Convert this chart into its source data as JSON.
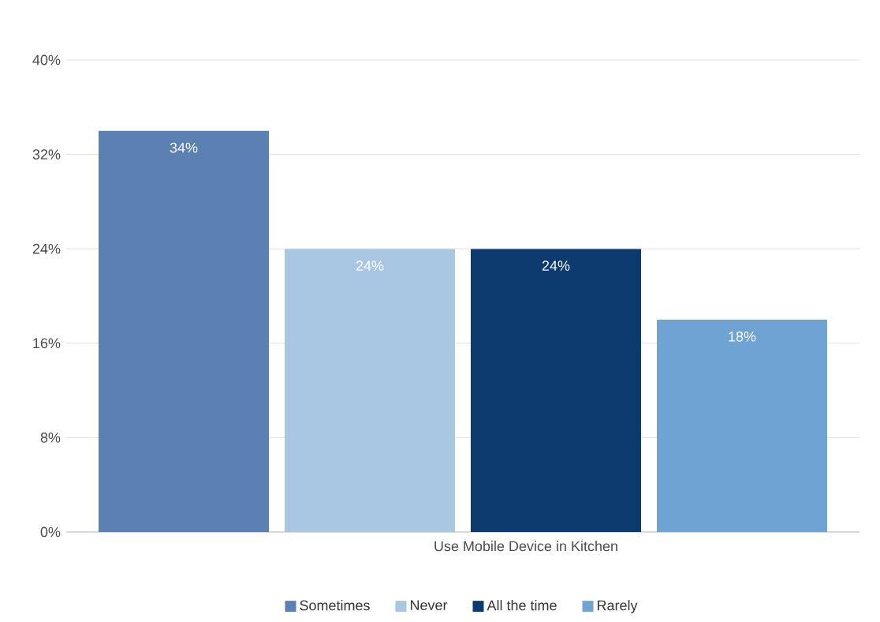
{
  "chart_data": {
    "type": "bar",
    "categories": [
      "Use Mobile Device in Kitchen"
    ],
    "series": [
      {
        "name": "Sometimes",
        "color": "#5b80b2",
        "values": [
          34
        ],
        "value_labels": [
          "34%"
        ]
      },
      {
        "name": "Never",
        "color": "#a9c6e2",
        "values": [
          24
        ],
        "value_labels": [
          "24%"
        ]
      },
      {
        "name": "All the time",
        "color": "#0d3b70",
        "values": [
          24
        ],
        "value_labels": [
          "24%"
        ]
      },
      {
        "name": "Rarely",
        "color": "#6fa3d4",
        "values": [
          18
        ],
        "value_labels": [
          "18%"
        ]
      }
    ],
    "ylim": [
      0,
      40
    ],
    "yticks": [
      {
        "value": 0,
        "label": "0%"
      },
      {
        "value": 8,
        "label": "8%"
      },
      {
        "value": 16,
        "label": "16%"
      },
      {
        "value": 24,
        "label": "24%"
      },
      {
        "value": 32,
        "label": "32%"
      },
      {
        "value": 40,
        "label": "40%"
      }
    ],
    "grid": "y",
    "legend": "bottom"
  }
}
